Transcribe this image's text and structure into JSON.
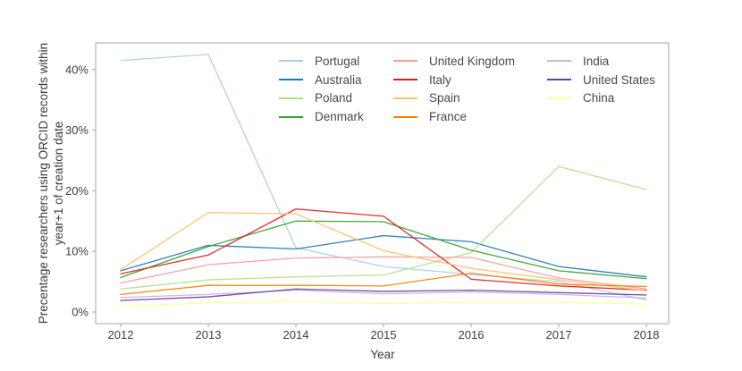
{
  "axis": {
    "x_label": "Year",
    "y_label_line1": "Precentage researchers using ORCID records within",
    "y_label_line2": "year+1 of creation date"
  },
  "chart_data": {
    "type": "line",
    "title": "",
    "xlabel": "Year",
    "ylabel": "Precentage researchers using ORCID records within year+1 of creation date",
    "x": [
      2012,
      2013,
      2014,
      2015,
      2016,
      2017,
      2018
    ],
    "x_tick_labels": [
      "2012",
      "2013",
      "2014",
      "2015",
      "2016",
      "2017",
      "2018"
    ],
    "y_ticks": [
      0,
      10,
      20,
      30,
      40
    ],
    "y_tick_labels": [
      "0%",
      "10%",
      "20%",
      "30%",
      "40%"
    ],
    "ylim": [
      -2,
      44.5
    ],
    "grid": false,
    "legend_position": "top-inside-3-columns",
    "panel_border_color": "#a6a6a6",
    "series": [
      {
        "name": "Portugal",
        "color": "#a6cee3",
        "values": [
          41.5,
          42.5,
          10.6,
          7.5,
          6.2,
          5.0,
          2.0
        ]
      },
      {
        "name": "Australia",
        "color": "#1f78b4",
        "values": [
          6.8,
          11.0,
          10.4,
          12.6,
          11.6,
          7.5,
          5.8
        ]
      },
      {
        "name": "Poland",
        "color": "#b2df8a",
        "values": [
          3.8,
          5.3,
          5.8,
          6.1,
          9.8,
          24.0,
          20.2
        ]
      },
      {
        "name": "Denmark",
        "color": "#33a02c",
        "values": [
          5.7,
          10.8,
          15.0,
          14.9,
          10.2,
          6.8,
          5.5
        ]
      },
      {
        "name": "United Kingdom",
        "color": "#fb9a99",
        "values": [
          4.8,
          7.8,
          8.9,
          9.1,
          9.0,
          5.6,
          3.8
        ]
      },
      {
        "name": "Italy",
        "color": "#e31a1c",
        "values": [
          6.3,
          9.4,
          17.0,
          15.8,
          5.4,
          4.3,
          3.6
        ]
      },
      {
        "name": "Spain",
        "color": "#fdbf6f",
        "values": [
          7.0,
          16.4,
          16.2,
          10.1,
          7.2,
          5.3,
          3.5
        ]
      },
      {
        "name": "France",
        "color": "#ff7f00",
        "values": [
          2.9,
          4.4,
          4.4,
          4.3,
          6.4,
          4.6,
          4.2
        ]
      },
      {
        "name": "India",
        "color": "#cab2d6",
        "values": [
          2.4,
          2.9,
          3.6,
          3.0,
          3.3,
          2.9,
          2.3
        ]
      },
      {
        "name": "United States",
        "color": "#6a3d9a",
        "values": [
          1.9,
          2.5,
          3.8,
          3.4,
          3.6,
          3.2,
          2.8
        ]
      },
      {
        "name": "China",
        "color": "#ffff99",
        "values": [
          0.9,
          1.5,
          1.7,
          1.4,
          1.6,
          1.6,
          1.3
        ]
      }
    ]
  },
  "legend": {
    "columns": [
      [
        "Portugal",
        "Australia",
        "Poland",
        "Denmark"
      ],
      [
        "United Kingdom",
        "Italy",
        "Spain",
        "France"
      ],
      [
        "India",
        "United States",
        "China"
      ]
    ]
  }
}
